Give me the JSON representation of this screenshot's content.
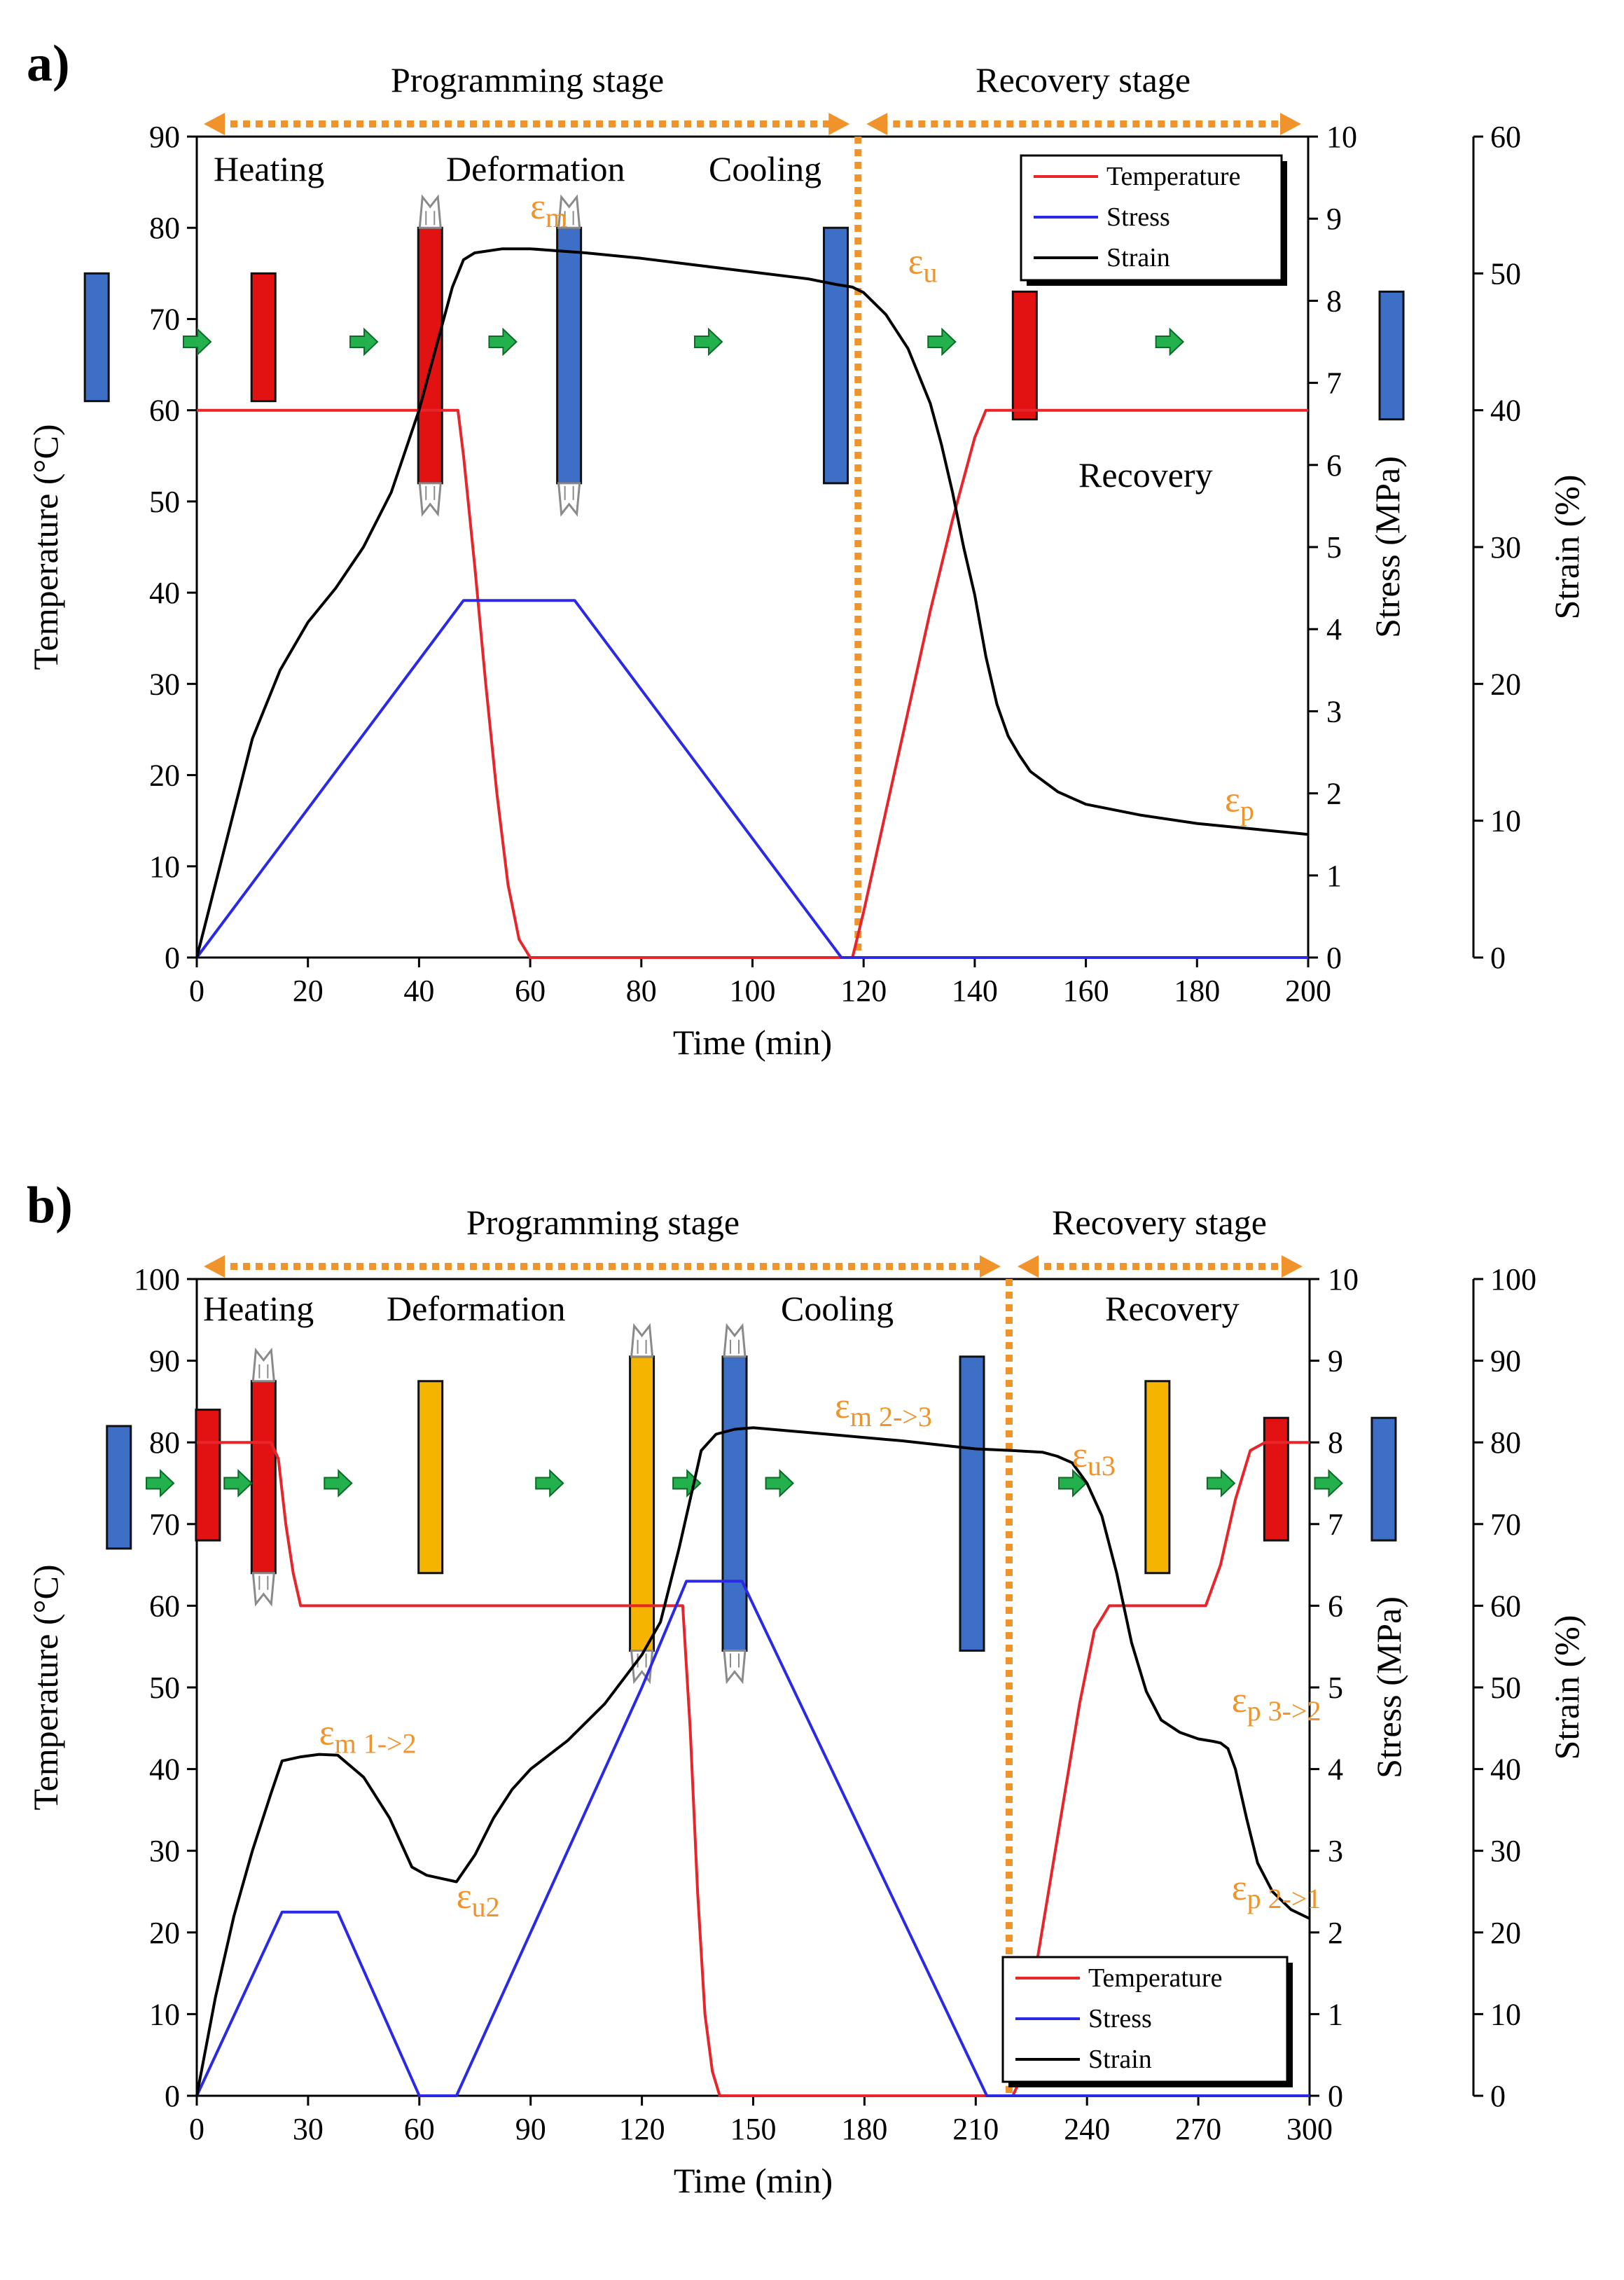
{
  "panel_a_label": "a)",
  "panel_b_label": "b)",
  "colors": {
    "temperature": "#e8252a",
    "stress": "#2a2ae6",
    "strain": "#000000",
    "accent_orange": "#f0932b",
    "sample_blue": "#3d6fc6",
    "sample_red": "#e31212",
    "sample_yellow": "#f5b400",
    "arrow_green": "#22b14c"
  },
  "chart_data": [
    {
      "type": "line",
      "panel": "a)",
      "xlabel": "Time (min)",
      "ylabel": "Temperature (°C)",
      "y2label": "Stress (MPa)",
      "y3label": "Strain (%)",
      "xlim": [
        0,
        200
      ],
      "ylim": [
        0,
        90
      ],
      "y2lim": [
        0,
        10
      ],
      "y3lim": [
        0,
        60
      ],
      "xticks": [
        0,
        20,
        40,
        60,
        80,
        100,
        120,
        140,
        160,
        180,
        200
      ],
      "yticks": [
        0,
        10,
        20,
        30,
        40,
        50,
        60,
        70,
        80,
        90
      ],
      "y2ticks": [
        0,
        1,
        2,
        3,
        4,
        5,
        6,
        7,
        8,
        9,
        10
      ],
      "y3ticks": [
        0,
        10,
        20,
        30,
        40,
        50,
        60
      ],
      "legend": {
        "position": "top-right",
        "entries": [
          "Temperature",
          "Stress",
          "Strain"
        ]
      },
      "stages": [
        {
          "label": "Programming stage",
          "from": 0,
          "to": 119
        },
        {
          "label": "Recovery stage",
          "from": 119,
          "to": 200
        }
      ],
      "stage_divider_x": 119,
      "step_labels": [
        "Heating",
        "Deformation",
        "Cooling",
        "Recovery"
      ],
      "annotations": [
        {
          "sym": "ε",
          "sub": "m",
          "x": 60,
          "y": 81
        },
        {
          "sym": "ε",
          "sub": "u",
          "x": 128,
          "y": 75
        },
        {
          "sym": "ε",
          "sub": "p",
          "x": 185,
          "y": 16
        }
      ],
      "series": [
        {
          "name": "Temperature",
          "axis": "left",
          "x": [
            0,
            47,
            48,
            50,
            52,
            54,
            56,
            58,
            60,
            80,
            100,
            116,
            118,
            120,
            124,
            128,
            132,
            136,
            140,
            142,
            145,
            148,
            160,
            200
          ],
          "y": [
            60,
            60,
            55,
            43,
            30,
            18,
            8,
            2,
            0,
            0,
            0,
            0,
            0,
            5,
            16,
            27,
            38,
            48,
            57,
            60,
            60,
            60,
            60,
            60
          ]
        },
        {
          "name": "Stress",
          "axis": "right",
          "x": [
            0,
            48,
            68,
            116,
            120,
            200
          ],
          "y": [
            0,
            4.35,
            4.35,
            0,
            0,
            0
          ]
        },
        {
          "name": "Strain",
          "axis": "strain",
          "x": [
            0,
            5,
            10,
            15,
            20,
            25,
            30,
            35,
            40,
            44,
            46,
            48,
            50,
            55,
            60,
            70,
            80,
            90,
            100,
            110,
            115,
            118,
            120,
            124,
            128,
            132,
            134,
            136,
            138,
            140,
            142,
            144,
            146,
            148,
            150,
            155,
            160,
            170,
            180,
            190,
            200
          ],
          "y": [
            0,
            8,
            16,
            21,
            24.5,
            27,
            30,
            34,
            40,
            46,
            49,
            51,
            51.5,
            51.8,
            51.8,
            51.5,
            51.1,
            50.6,
            50.1,
            49.6,
            49.2,
            49,
            48.6,
            47,
            44.5,
            40.5,
            37.5,
            34,
            30,
            26.5,
            22,
            18.5,
            16.2,
            14.8,
            13.6,
            12.1,
            11.2,
            10.4,
            9.8,
            9.4,
            9
          ]
        }
      ],
      "samples": [
        {
          "color": "blue",
          "x": -18,
          "y_top": 75,
          "y_bottom": 61,
          "grips": false
        },
        {
          "color": "red",
          "x": 12,
          "y_top": 75,
          "y_bottom": 61,
          "grips": false
        },
        {
          "color": "red",
          "x": 42,
          "y_top": 80,
          "y_bottom": 52,
          "grips": true
        },
        {
          "color": "blue",
          "x": 67,
          "y_top": 80,
          "y_bottom": 52,
          "grips": true
        },
        {
          "color": "blue",
          "x": 115,
          "y_top": 80,
          "y_bottom": 52,
          "grips": false
        },
        {
          "color": "red",
          "x": 149,
          "y_top": 73,
          "y_bottom": 59,
          "grips": false
        },
        {
          "color": "blue",
          "x": 215,
          "y_top": 73,
          "y_bottom": 59,
          "grips": false
        }
      ],
      "arrows_x": [
        0,
        30,
        55,
        92,
        134,
        175
      ],
      "arrows_y": 67.5
    },
    {
      "type": "line",
      "panel": "b)",
      "xlabel": "Time (min)",
      "ylabel": "Temperature (°C)",
      "y2label": "Stress (MPa)",
      "y3label": "Strain (%)",
      "xlim": [
        0,
        300
      ],
      "ylim": [
        0,
        100
      ],
      "y2lim": [
        0,
        10
      ],
      "y3lim": [
        0,
        100
      ],
      "xticks": [
        0,
        30,
        60,
        90,
        120,
        150,
        180,
        210,
        240,
        270,
        300
      ],
      "yticks": [
        0,
        10,
        20,
        30,
        40,
        50,
        60,
        70,
        80,
        90,
        100
      ],
      "y2ticks": [
        0,
        1,
        2,
        3,
        4,
        5,
        6,
        7,
        8,
        9,
        10
      ],
      "y3ticks": [
        0,
        10,
        20,
        30,
        40,
        50,
        60,
        70,
        80,
        90,
        100
      ],
      "legend": {
        "position": "bottom-right",
        "entries": [
          "Temperature",
          "Stress",
          "Strain"
        ]
      },
      "stages": [
        {
          "label": "Programming stage",
          "from": 0,
          "to": 219
        },
        {
          "label": "Recovery stage",
          "from": 219,
          "to": 300
        }
      ],
      "stage_divider_x": 219,
      "step_labels": [
        "Heating",
        "Deformation",
        "Cooling",
        "Recovery"
      ],
      "annotations": [
        {
          "sym": "ε",
          "sub": "m  1->2",
          "x": 33,
          "y": 43
        },
        {
          "sym": "ε",
          "sub": "u2",
          "x": 70,
          "y": 23
        },
        {
          "sym": "ε",
          "sub": "m  2->3",
          "x": 172,
          "y": 83
        },
        {
          "sym": "ε",
          "sub": "u3",
          "x": 236,
          "y": 77
        },
        {
          "sym": "ε",
          "sub": "p  3->2",
          "x": 279,
          "y": 47
        },
        {
          "sym": "ε",
          "sub": "p  2->1",
          "x": 279,
          "y": 24
        }
      ],
      "series": [
        {
          "name": "Temperature",
          "axis": "left",
          "x": [
            0,
            20,
            22,
            24,
            26,
            28,
            30,
            60,
            90,
            120,
            131,
            133,
            135,
            137,
            139,
            141,
            145,
            180,
            210,
            220,
            222,
            224,
            226,
            230,
            234,
            238,
            242,
            246,
            250,
            260,
            272,
            276,
            280,
            284,
            288,
            300
          ],
          "y": [
            80,
            80,
            78,
            70,
            64,
            60,
            60,
            60,
            60,
            60,
            60,
            45,
            25,
            10,
            3,
            0,
            0,
            0,
            0,
            0,
            2,
            7,
            15,
            26,
            37,
            48,
            57,
            60,
            60,
            60,
            60,
            65,
            73,
            79,
            80,
            80
          ]
        },
        {
          "name": "Stress",
          "axis": "right",
          "x": [
            0,
            23,
            38,
            60,
            70,
            120,
            132,
            147,
            213,
            300
          ],
          "y": [
            0,
            2.25,
            2.25,
            0,
            0,
            5,
            6.3,
            6.3,
            0,
            0
          ]
        },
        {
          "name": "Strain",
          "axis": "strain",
          "x": [
            0,
            5,
            10,
            15,
            20,
            23,
            28,
            33,
            38,
            45,
            52,
            58,
            62,
            67,
            70,
            75,
            80,
            85,
            90,
            100,
            110,
            115,
            120,
            125,
            130,
            134,
            136,
            140,
            145,
            150,
            170,
            190,
            210,
            220,
            228,
            232,
            236,
            240,
            244,
            248,
            252,
            256,
            260,
            265,
            270,
            274,
            276,
            278,
            280,
            283,
            286,
            290,
            295,
            300
          ],
          "y": [
            0,
            12,
            22,
            30,
            37,
            41,
            41.5,
            41.8,
            41.7,
            39,
            34,
            28,
            27,
            26.5,
            26.2,
            29.5,
            34,
            37.5,
            40,
            43.5,
            48,
            51,
            54,
            58,
            67,
            75,
            79,
            81,
            81.6,
            81.8,
            81,
            80.2,
            79.2,
            79,
            78.8,
            78.3,
            77.5,
            75,
            71,
            64,
            55.5,
            49.5,
            46,
            44.5,
            43.7,
            43.4,
            43.2,
            42.5,
            40,
            34,
            28.5,
            25,
            22.8,
            21.7
          ]
        }
      ],
      "samples": [
        {
          "color": "blue",
          "x": -21,
          "y_top": 82,
          "y_bottom": 67,
          "grips": false
        },
        {
          "color": "red",
          "x": 3,
          "y_top": 84,
          "y_bottom": 68,
          "grips": false
        },
        {
          "color": "red",
          "x": 18,
          "y_top": 87.5,
          "y_bottom": 64,
          "grips": true
        },
        {
          "color": "yellow",
          "x": 63,
          "y_top": 87.5,
          "y_bottom": 64,
          "grips": false
        },
        {
          "color": "yellow",
          "x": 120,
          "y_top": 90.5,
          "y_bottom": 54.5,
          "grips": true
        },
        {
          "color": "blue",
          "x": 145,
          "y_top": 90.5,
          "y_bottom": 54.5,
          "grips": true
        },
        {
          "color": "blue",
          "x": 209,
          "y_top": 90.5,
          "y_bottom": 54.5,
          "grips": false
        },
        {
          "color": "yellow",
          "x": 259,
          "y_top": 87.5,
          "y_bottom": 64,
          "grips": false
        },
        {
          "color": "red",
          "x": 291,
          "y_top": 83,
          "y_bottom": 68,
          "grips": false
        },
        {
          "color": "blue",
          "x": 320,
          "y_top": 83,
          "y_bottom": 68,
          "grips": false
        }
      ],
      "arrows_x": [
        -10,
        11,
        38,
        95,
        132,
        157,
        236,
        276,
        305
      ],
      "arrows_y": 75
    }
  ]
}
